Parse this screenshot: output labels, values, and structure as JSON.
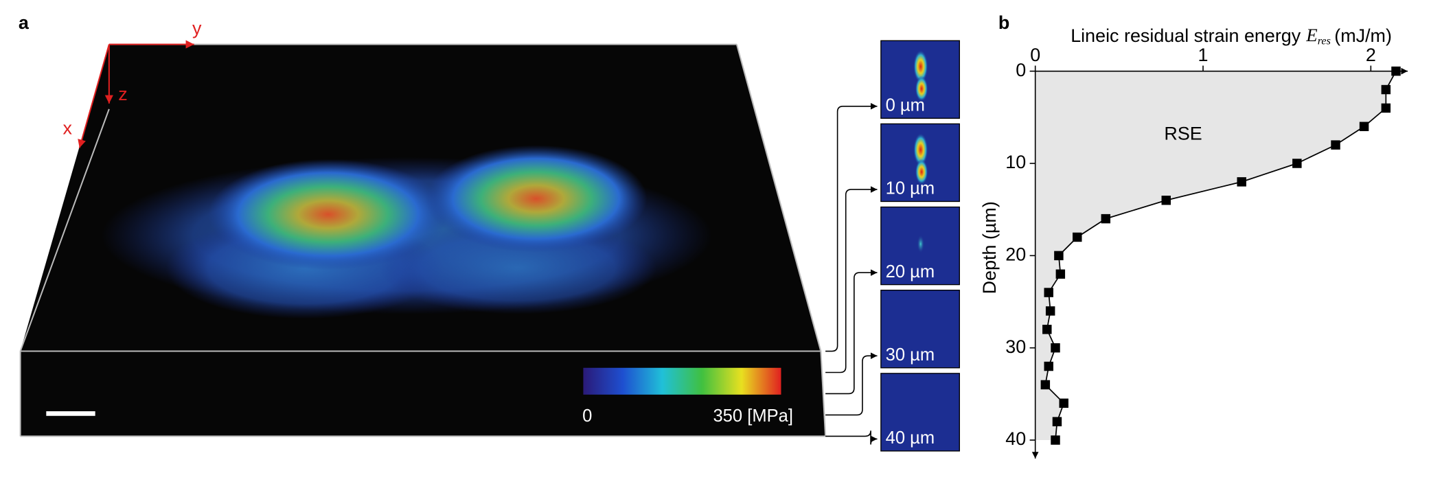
{
  "panel_a": {
    "label": "a",
    "axes": {
      "x": "x",
      "y": "y",
      "z": "z"
    },
    "colorbar": {
      "min_label": "0",
      "max_label": "350 [MPa]"
    },
    "slices": [
      "0 µm",
      "10 µm",
      "20 µm",
      "30 µm",
      "40 µm"
    ]
  },
  "chart_data": {
    "type": "scatter-line",
    "panel_label": "b",
    "xlabel": {
      "text": "Lineic residual strain energy",
      "symbol": "E",
      "subscript": "res",
      "unit": "(mJ/m)"
    },
    "ylabel": "Depth (µm)",
    "annotation": "RSE",
    "depth": [
      0,
      2,
      4,
      6,
      8,
      10,
      12,
      14,
      16,
      18,
      20,
      22,
      24,
      26,
      28,
      30,
      32,
      34,
      36,
      38,
      40
    ],
    "values": [
      2.15,
      2.09,
      2.09,
      1.96,
      1.79,
      1.56,
      1.23,
      0.78,
      0.42,
      0.25,
      0.14,
      0.15,
      0.08,
      0.09,
      0.07,
      0.12,
      0.08,
      0.06,
      0.17,
      0.13,
      0.12
    ],
    "color": "#000000",
    "area_color": "#e6e6e6",
    "xlim": [
      0,
      2.22
    ],
    "xticks": [
      0,
      1,
      2
    ],
    "ylim": [
      0,
      42
    ],
    "yticks": [
      0,
      10,
      20,
      30,
      40
    ]
  }
}
